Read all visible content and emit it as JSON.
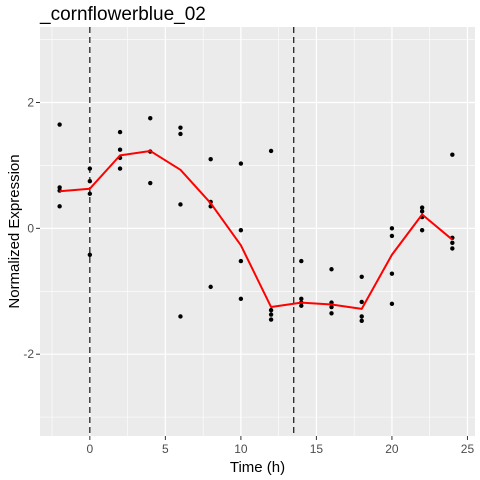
{
  "chart_data": {
    "type": "scatter",
    "title": "_cornflowerblue_02",
    "xlabel": "Time (h)",
    "ylabel": "Normalized Expression",
    "xlim": [
      -3.3,
      25.5
    ],
    "ylim": [
      -3.3,
      3.2
    ],
    "x_ticks": [
      0,
      5,
      10,
      15,
      20,
      25
    ],
    "y_ticks": [
      -2,
      0,
      2
    ],
    "x_tick_labels": [
      "0",
      "5",
      "10",
      "15",
      "20",
      "25"
    ],
    "y_tick_labels": [
      "-2",
      "0",
      "2"
    ],
    "grid": true,
    "legend": "none",
    "colors": {
      "panel_background": "#ebebeb",
      "grid_major": "#ffffff",
      "points": "#000000",
      "trend_line": "#ff0000",
      "vline": "#000000",
      "tick_label": "#4d4d4d"
    },
    "vlines": [
      0,
      13.5
    ],
    "points": [
      {
        "x": -2,
        "y": 1.65
      },
      {
        "x": -2,
        "y": 0.65
      },
      {
        "x": -2,
        "y": 0.6
      },
      {
        "x": -2,
        "y": 0.35
      },
      {
        "x": 0,
        "y": 0.95
      },
      {
        "x": 0,
        "y": 0.75
      },
      {
        "x": 0,
        "y": 0.55
      },
      {
        "x": 0,
        "y": -0.42
      },
      {
        "x": 2,
        "y": 1.53
      },
      {
        "x": 2,
        "y": 1.25
      },
      {
        "x": 2,
        "y": 1.12
      },
      {
        "x": 2,
        "y": 0.95
      },
      {
        "x": 4,
        "y": 1.75
      },
      {
        "x": 4,
        "y": 1.22
      },
      {
        "x": 4,
        "y": 0.72
      },
      {
        "x": 6,
        "y": 1.6
      },
      {
        "x": 6,
        "y": 1.5
      },
      {
        "x": 6,
        "y": 0.38
      },
      {
        "x": 6,
        "y": -1.4
      },
      {
        "x": 8,
        "y": 1.1
      },
      {
        "x": 8,
        "y": 0.42
      },
      {
        "x": 8,
        "y": 0.35
      },
      {
        "x": 8,
        "y": -0.93
      },
      {
        "x": 10,
        "y": 1.03
      },
      {
        "x": 10,
        "y": -0.03
      },
      {
        "x": 10,
        "y": -0.52
      },
      {
        "x": 10,
        "y": -1.12
      },
      {
        "x": 12,
        "y": 1.23
      },
      {
        "x": 12,
        "y": -1.3
      },
      {
        "x": 12,
        "y": -1.37
      },
      {
        "x": 12,
        "y": -1.45
      },
      {
        "x": 14,
        "y": -0.52
      },
      {
        "x": 14,
        "y": -1.12
      },
      {
        "x": 14,
        "y": -1.18
      },
      {
        "x": 14,
        "y": -1.23
      },
      {
        "x": 16,
        "y": -0.65
      },
      {
        "x": 16,
        "y": -1.18
      },
      {
        "x": 16,
        "y": -1.25
      },
      {
        "x": 16,
        "y": -1.35
      },
      {
        "x": 18,
        "y": -0.77
      },
      {
        "x": 18,
        "y": -1.17
      },
      {
        "x": 18,
        "y": -1.4
      },
      {
        "x": 18,
        "y": -1.47
      },
      {
        "x": 20,
        "y": 0.0
      },
      {
        "x": 20,
        "y": -0.12
      },
      {
        "x": 20,
        "y": -0.72
      },
      {
        "x": 20,
        "y": -1.2
      },
      {
        "x": 22,
        "y": 0.33
      },
      {
        "x": 22,
        "y": 0.27
      },
      {
        "x": 22,
        "y": 0.18
      },
      {
        "x": 22,
        "y": -0.03
      },
      {
        "x": 24,
        "y": 1.17
      },
      {
        "x": 24,
        "y": -0.15
      },
      {
        "x": 24,
        "y": -0.23
      },
      {
        "x": 24,
        "y": -0.32
      }
    ],
    "trend_line": {
      "x": [
        -2,
        0,
        2,
        4,
        6,
        8,
        10,
        12,
        14,
        16,
        18,
        20,
        22,
        24
      ],
      "y": [
        0.59,
        0.63,
        1.16,
        1.23,
        0.93,
        0.4,
        -0.27,
        -1.25,
        -1.18,
        -1.21,
        -1.28,
        -0.42,
        0.22,
        -0.18
      ]
    }
  }
}
